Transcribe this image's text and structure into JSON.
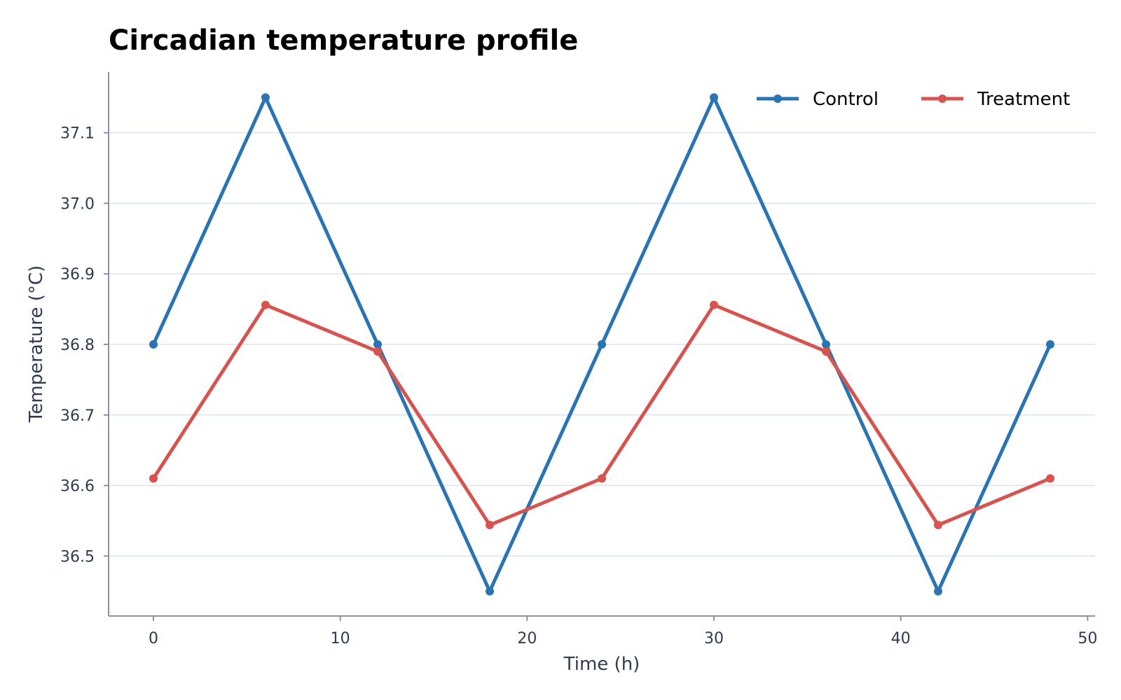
{
  "chart_data": {
    "type": "line",
    "title": "Circadian temperature profile",
    "xlabel": "Time (h)",
    "ylabel": "Temperature (°C)",
    "xlim": [
      -2.4,
      50.4
    ],
    "ylim": [
      36.415,
      37.186
    ],
    "xticks": [
      0,
      10,
      20,
      30,
      40,
      50
    ],
    "xtick_labels": [
      "0",
      "10",
      "20",
      "30",
      "40",
      "50"
    ],
    "yticks": [
      36.5,
      36.6,
      36.7,
      36.8,
      36.9,
      37.0,
      37.1
    ],
    "ytick_labels": [
      "36.5",
      "36.6",
      "36.7",
      "36.8",
      "36.9",
      "37.0",
      "37.1"
    ],
    "grid": "horizontal",
    "legend_position": "top-right",
    "x": [
      0,
      6,
      12,
      18,
      24,
      30,
      36,
      42,
      48
    ],
    "series": [
      {
        "name": "Control",
        "color": "#2a74b4",
        "values": [
          36.8,
          37.15,
          36.8,
          36.45,
          36.8,
          37.15,
          36.8,
          36.45,
          36.8
        ]
      },
      {
        "name": "Treatment",
        "color": "#d65350",
        "values": [
          36.61,
          36.856,
          36.79,
          36.544,
          36.61,
          36.856,
          36.79,
          36.544,
          36.61
        ]
      }
    ]
  }
}
